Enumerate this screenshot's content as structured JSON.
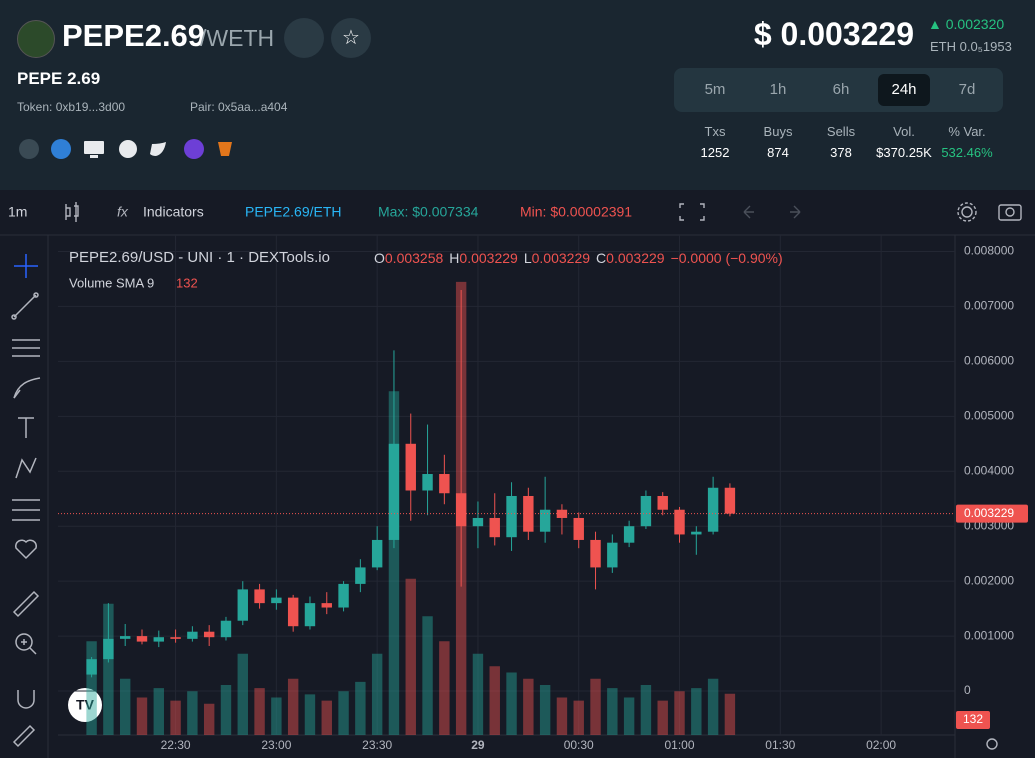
{
  "header": {
    "symbol": "PEPE2.69",
    "quote": "/WETH",
    "name": "PEPE 2.69",
    "token": "Token: 0xb19...3d00",
    "pair": "Pair: 0x5aa...a404",
    "price": "$ 0.003229",
    "change": "0.002320",
    "eth_price": "ETH 0.0₅1953"
  },
  "timeframes": [
    "5m",
    "1h",
    "6h",
    "24h",
    "7d"
  ],
  "stats": [
    {
      "label": "Txs",
      "value": 1252
    },
    {
      "label": "Buys",
      "value": 874
    },
    {
      "label": "Sells",
      "value": 378
    },
    {
      "label": "Vol.",
      "value": "$370.25K"
    },
    {
      "label": "% Var.",
      "value": "532.46%"
    }
  ],
  "toolbar": {
    "interval": "1m",
    "indicators": "Indicators",
    "pair": "PEPE2.69/ETH",
    "max": "Max: $0.007334",
    "min": "Min: $0.00002391"
  },
  "chart_data": {
    "type": "candlestick",
    "title": "PEPE2.69/USD - UNI · 1 · DEXTools.io",
    "legend_ohlc": [
      {
        "key": "O",
        "value": "0.003258"
      },
      {
        "key": "H",
        "value": "0.003229"
      },
      {
        "key": "L",
        "value": "0.003229"
      },
      {
        "key": "C",
        "value": "0.003229"
      }
    ],
    "legend_change": "−0.0000 (−0.90%)",
    "volume_name": "Volume SMA 9",
    "up_color": "#26a69a",
    "down_color": "#ef5350",
    "x": [
      "22:05",
      "22:10",
      "22:15",
      "22:20",
      "22:25",
      "22:30",
      "22:35",
      "22:40",
      "22:45",
      "22:50",
      "22:55",
      "23:00",
      "23:05",
      "23:10",
      "23:15",
      "23:20",
      "23:25",
      "23:30",
      "23:35",
      "23:40",
      "23:45",
      "23:50",
      "23:55",
      "00:00",
      "00:05",
      "00:10",
      "00:15",
      "00:20",
      "00:25",
      "00:30",
      "00:35",
      "00:40",
      "00:45",
      "00:50",
      "00:55",
      "01:00",
      "01:05",
      "01:10",
      "01:15"
    ],
    "open": [
      0.0003,
      0.00058,
      0.00095,
      0.001,
      0.0009,
      0.00098,
      0.00095,
      0.00108,
      0.00098,
      0.00128,
      0.00185,
      0.0016,
      0.0017,
      0.00118,
      0.0016,
      0.00152,
      0.00195,
      0.00225,
      0.00275,
      0.0045,
      0.00365,
      0.00395,
      0.0036,
      0.003,
      0.00315,
      0.0028,
      0.00355,
      0.0029,
      0.0033,
      0.00315,
      0.00275,
      0.00225,
      0.0027,
      0.003,
      0.00355,
      0.0033,
      0.00285,
      0.0029,
      0.0037
    ],
    "high": [
      0.00062,
      0.0016,
      0.00122,
      0.00112,
      0.0011,
      0.00112,
      0.00118,
      0.0012,
      0.00135,
      0.002,
      0.00195,
      0.00185,
      0.00175,
      0.00172,
      0.0018,
      0.002,
      0.0024,
      0.003,
      0.0062,
      0.00505,
      0.00485,
      0.0043,
      0.0073,
      0.00345,
      0.0036,
      0.0038,
      0.0037,
      0.0039,
      0.0034,
      0.00325,
      0.0029,
      0.00285,
      0.0031,
      0.00365,
      0.00362,
      0.00335,
      0.003,
      0.0039,
      0.00378
    ],
    "low": [
      0.00025,
      0.00052,
      0.00082,
      0.00085,
      0.0008,
      0.00088,
      0.0009,
      0.00082,
      0.00092,
      0.0012,
      0.0015,
      0.00148,
      0.00108,
      0.00112,
      0.0014,
      0.00145,
      0.0018,
      0.0022,
      0.0026,
      0.0031,
      0.0032,
      0.0034,
      0.0019,
      0.0026,
      0.00265,
      0.00255,
      0.00275,
      0.0027,
      0.00285,
      0.0026,
      0.00185,
      0.00215,
      0.00262,
      0.00295,
      0.0032,
      0.0027,
      0.00248,
      0.00285,
      0.00318
    ],
    "close": [
      0.00058,
      0.00095,
      0.001,
      0.0009,
      0.00098,
      0.00095,
      0.00108,
      0.00098,
      0.00128,
      0.00185,
      0.0016,
      0.0017,
      0.00118,
      0.0016,
      0.00152,
      0.00195,
      0.00225,
      0.00275,
      0.0045,
      0.00365,
      0.00395,
      0.0036,
      0.003,
      0.00315,
      0.0028,
      0.00355,
      0.0029,
      0.0033,
      0.00315,
      0.00275,
      0.00225,
      0.0027,
      0.003,
      0.00355,
      0.0033,
      0.00285,
      0.0029,
      0.0037,
      0.003229
    ],
    "volume": [
      300,
      420,
      180,
      120,
      150,
      110,
      140,
      100,
      160,
      260,
      150,
      120,
      180,
      130,
      110,
      140,
      170,
      260,
      1100,
      500,
      380,
      300,
      1450,
      260,
      220,
      200,
      180,
      160,
      120,
      110,
      180,
      150,
      120,
      160,
      110,
      140,
      150,
      180,
      132
    ],
    "volume_lim": [
      0,
      1600
    ],
    "xlim": [
      "21:55",
      "02:22"
    ],
    "xticks": [
      "22:30",
      "23:00",
      "23:30",
      {
        "value": "00:00",
        "label": "29"
      },
      "00:30",
      "01:00",
      "01:30",
      "02:00"
    ],
    "ylim": [
      -0.0008,
      0.0083
    ],
    "yticks": [
      0,
      {
        "value": 0.001,
        "label": "0.001000"
      },
      {
        "value": 0.002,
        "label": "0.002000"
      },
      {
        "value": 0.003,
        "label": "0.003000"
      },
      {
        "value": 0.004,
        "label": "0.004000"
      },
      {
        "value": 0.005,
        "label": "0.005000"
      },
      {
        "value": 0.006,
        "label": "0.006000"
      },
      {
        "value": 0.007,
        "label": "0.007000"
      },
      {
        "value": 0.008,
        "label": "0.008000"
      }
    ],
    "grid": true
  }
}
